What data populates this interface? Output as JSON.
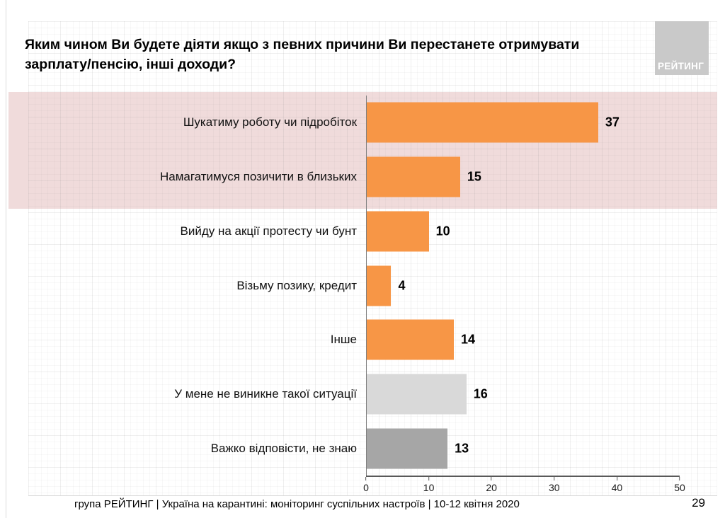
{
  "slide": {
    "title": "Яким чином Ви будете діяти якщо з певних причини Ви перестанете отримувати зарплату/пенсію, інші доходи?",
    "logo_text": "РЕЙТИНГ",
    "footer": "група РЕЙТИНГ | Україна на карантині: моніторинг суспільних настроїв | 10-12 квітня 2020",
    "page_number": "29"
  },
  "colors": {
    "bar_orange": "#F79646",
    "bar_light_gray": "#D9D9D9",
    "bar_dark_gray": "#A6A6A6",
    "highlight_band": "#F0DBDB",
    "logo_bg": "#C9C9C9",
    "axis": "#595959"
  },
  "chart_data": {
    "type": "bar",
    "orientation": "horizontal",
    "title": "Яким чином Ви будете діяти якщо з певних причини Ви перестанете отримувати зарплату/пенсію, інші доходи?",
    "categories": [
      "Шукатиму роботу чи підробіток",
      "Намагатимуся позичити в близьких",
      "Вийду на акції протесту чи бунт",
      "Візьму позику, кредит",
      "Інше",
      "У мене не виникне такої ситуації",
      "Важко відповісти, не знаю"
    ],
    "values": [
      37,
      15,
      10,
      4,
      14,
      16,
      13
    ],
    "bar_colors": [
      "#F79646",
      "#F79646",
      "#F79646",
      "#F79646",
      "#F79646",
      "#D9D9D9",
      "#A6A6A6"
    ],
    "highlighted_rows": [
      0,
      1
    ],
    "xlim": [
      0,
      50
    ],
    "x_ticks": [
      0,
      10,
      20,
      30,
      40,
      50
    ],
    "xlabel": "",
    "ylabel": "",
    "legend": "none",
    "grid": "off",
    "value_labels": "outside-end"
  }
}
